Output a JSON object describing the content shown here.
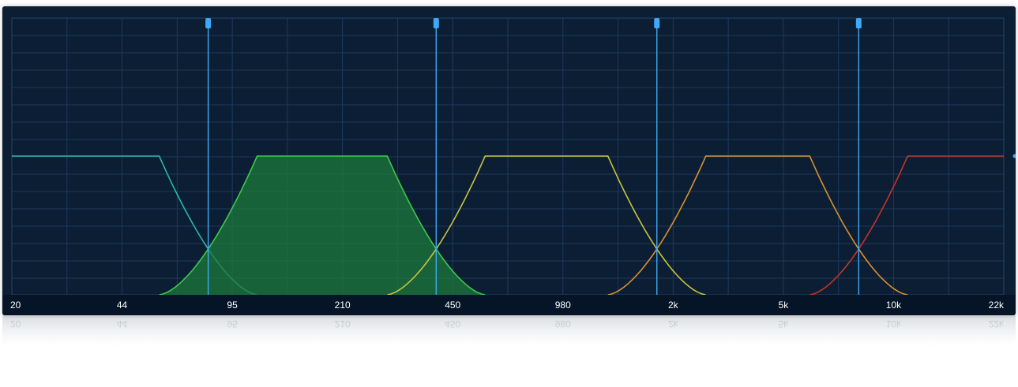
{
  "window": {
    "title": ""
  },
  "axis": {
    "tick_labels": [
      "20",
      "44",
      "95",
      "210",
      "450",
      "980",
      "2k",
      "5k",
      "10k",
      "22k"
    ]
  },
  "crossovers": [
    {
      "name": "crossover-1",
      "frequency_hz": 80
    },
    {
      "name": "crossover-2",
      "frequency_hz": 400
    },
    {
      "name": "crossover-3",
      "frequency_hz": 1900
    },
    {
      "name": "crossover-4",
      "frequency_hz": 7900
    }
  ],
  "bands": [
    {
      "name": "band-1",
      "color": "#2ab7a9",
      "solo": false
    },
    {
      "name": "band-2",
      "color": "#3ec94a",
      "solo": true
    },
    {
      "name": "band-3",
      "color": "#c9c43c",
      "solo": false
    },
    {
      "name": "band-4",
      "color": "#d9912f",
      "solo": false
    },
    {
      "name": "band-5",
      "color": "#c8322a",
      "solo": false
    }
  ],
  "colors": {
    "background": "#0b1e34",
    "grid": "#1d3b5c",
    "crossover_line": "#3fa9f5",
    "selected_fill": "#1e7a3c"
  }
}
